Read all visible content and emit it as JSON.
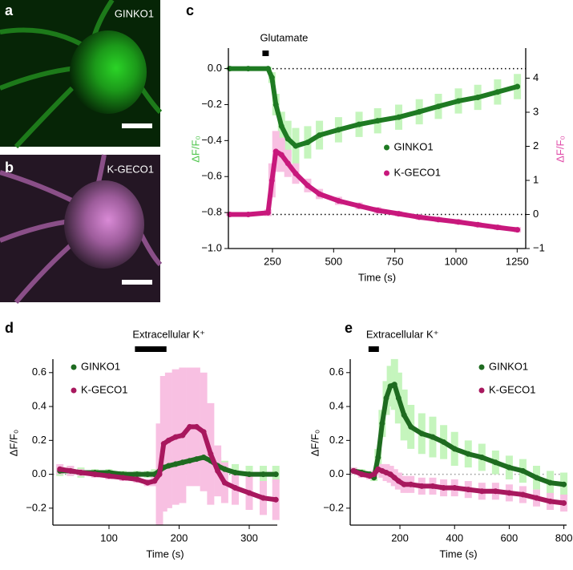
{
  "panels": [
    {
      "letter": "a",
      "label": "GINKO1",
      "color": "#23c21f"
    },
    {
      "letter": "b",
      "label": "K-GECO1",
      "color": "#c77ac4"
    }
  ],
  "chart_data": [
    {
      "type": "line",
      "panel_label": "c",
      "stimulus_label": "Glutamate",
      "stimulus": [
        209,
        235
      ],
      "x": [
        76,
        151,
        232,
        248,
        264,
        287,
        313,
        345,
        394,
        442,
        520,
        604,
        680,
        766,
        850,
        928,
        1010,
        1089,
        1170,
        1251
      ],
      "series": [
        {
          "name": "GINKO1",
          "color": "#1e7a22",
          "error_color": "#c5f5bd",
          "axis": "y",
          "values": [
            0.0,
            0.0,
            0.0,
            -0.05,
            -0.2,
            -0.32,
            -0.39,
            -0.43,
            -0.41,
            -0.37,
            -0.34,
            -0.31,
            -0.29,
            -0.27,
            -0.24,
            -0.21,
            -0.18,
            -0.16,
            -0.13,
            -0.1
          ],
          "errors": [
            0.01,
            0.01,
            0.01,
            0.03,
            0.06,
            0.08,
            0.1,
            0.1,
            0.09,
            0.08,
            0.07,
            0.07,
            0.07,
            0.07,
            0.07,
            0.07,
            0.07,
            0.07,
            0.07,
            0.07
          ]
        },
        {
          "name": "K-GECO1",
          "color": "#c8187c",
          "error_color": "#f8c0e2",
          "axis": "y2",
          "values": [
            0,
            0,
            0.05,
            1.0,
            1.85,
            1.75,
            1.5,
            1.2,
            0.85,
            0.6,
            0.4,
            0.25,
            0.12,
            0.02,
            -0.08,
            -0.15,
            -0.22,
            -0.3,
            -0.38,
            -0.45
          ],
          "errors": [
            0.05,
            0.05,
            0.1,
            0.5,
            0.6,
            0.5,
            0.4,
            0.3,
            0.2,
            0.15,
            0.12,
            0.1,
            0.1,
            0.08,
            0.08,
            0.08,
            0.08,
            0.08,
            0.08,
            0.08
          ]
        }
      ],
      "xlim": [
        70,
        1285
      ],
      "xticks": [
        250,
        500,
        750,
        1000,
        1250
      ],
      "ylim": [
        -1.0,
        0.105
      ],
      "yticks": [
        {
          "value": -1.0,
          "label": "−1.0"
        },
        {
          "value": -0.8,
          "label": "−0.8"
        },
        {
          "value": -0.6,
          "label": "−0.6"
        },
        {
          "value": -0.4,
          "label": "−0.4"
        },
        {
          "value": -0.2,
          "label": "−0.2"
        },
        {
          "value": 0,
          "label": "0.0"
        }
      ],
      "y2lim": [
        -1,
        4.835
      ],
      "y2ticks": [
        {
          "value": -1,
          "label": "−1"
        },
        0,
        1,
        2,
        3,
        4
      ],
      "reference": [
        {
          "axis": "y",
          "value": 0
        },
        {
          "axis": "y2",
          "value": 0
        }
      ],
      "xlabel": "Time (s)",
      "ylabel": "ΔF/F₀",
      "ylabel_color": "#4cc44a",
      "y2label": "ΔF/F₀",
      "y2label_color": "#e04aa8",
      "legend": "center"
    },
    {
      "type": "line",
      "panel_label": "d",
      "stimulus_label": "Extracellular K⁺",
      "stimulus": [
        137,
        182
      ],
      "x": [
        30,
        45,
        60,
        80,
        100,
        120,
        140,
        155,
        165,
        172,
        178,
        185,
        195,
        205,
        215,
        225,
        235,
        245,
        255,
        265,
        280,
        300,
        320,
        338
      ],
      "series": [
        {
          "name": "GINKO1",
          "color": "#1e6b20",
          "error_color": "#c5f5bd",
          "axis": "y",
          "values": [
            0.02,
            0.02,
            0.01,
            0.01,
            0.01,
            0.0,
            0.0,
            0.0,
            0.0,
            0.02,
            0.04,
            0.05,
            0.06,
            0.07,
            0.08,
            0.09,
            0.1,
            0.08,
            0.05,
            0.03,
            0.01,
            0.0,
            0.0,
            0.0
          ],
          "errors": [
            0.03,
            0.03,
            0.03,
            0.02,
            0.02,
            0.02,
            0.02,
            0.02,
            0.03,
            0.04,
            0.05,
            0.05,
            0.05,
            0.05,
            0.06,
            0.06,
            0.06,
            0.06,
            0.05,
            0.05,
            0.05,
            0.05,
            0.05,
            0.05
          ]
        },
        {
          "name": "K-GECO1",
          "color": "#a8185e",
          "error_color": "#f8c0e2",
          "axis": "y",
          "values": [
            0.03,
            0.02,
            0.01,
            0.0,
            -0.01,
            -0.02,
            -0.03,
            -0.05,
            -0.04,
            0.0,
            0.18,
            0.2,
            0.22,
            0.23,
            0.28,
            0.28,
            0.25,
            0.12,
            0.02,
            -0.05,
            -0.08,
            -0.11,
            -0.14,
            -0.15
          ],
          "errors": [
            0.03,
            0.03,
            0.02,
            0.02,
            0.02,
            0.02,
            0.02,
            0.02,
            0.03,
            0.3,
            0.4,
            0.4,
            0.4,
            0.4,
            0.35,
            0.35,
            0.35,
            0.3,
            0.15,
            0.12,
            0.1,
            0.1,
            0.1,
            0.12
          ]
        }
      ],
      "xlim": [
        20,
        340
      ],
      "xticks": [
        100,
        200,
        300
      ],
      "ylim": [
        -0.3,
        0.67
      ],
      "yticks": [
        {
          "value": -0.2,
          "label": "−0.2"
        },
        {
          "value": 0,
          "label": "0.0"
        },
        0.2,
        0.4,
        0.6
      ],
      "reference": [
        {
          "axis": "y",
          "value": 0
        }
      ],
      "xlabel": "Time (s)",
      "ylabel": "ΔF/F₀",
      "ylabel_color": "#000000",
      "legend": "upper left"
    },
    {
      "type": "line",
      "panel_label": "e",
      "stimulus_label": "Extracellular K⁺",
      "stimulus": [
        85,
        123
      ],
      "x": [
        30,
        60,
        90,
        105,
        120,
        135,
        150,
        165,
        180,
        195,
        215,
        240,
        280,
        320,
        360,
        400,
        450,
        500,
        550,
        600,
        650,
        700,
        750,
        800
      ],
      "series": [
        {
          "name": "GINKO1",
          "color": "#1e6b20",
          "error_color": "#c5f5bd",
          "axis": "y",
          "values": [
            0.02,
            0.01,
            0.0,
            -0.02,
            0.1,
            0.3,
            0.45,
            0.52,
            0.53,
            0.45,
            0.35,
            0.28,
            0.24,
            0.22,
            0.19,
            0.15,
            0.12,
            0.1,
            0.07,
            0.04,
            0.02,
            -0.02,
            -0.05,
            -0.06
          ],
          "errors": [
            0.02,
            0.02,
            0.02,
            0.02,
            0.05,
            0.08,
            0.1,
            0.12,
            0.15,
            0.15,
            0.15,
            0.13,
            0.12,
            0.12,
            0.1,
            0.1,
            0.08,
            0.08,
            0.07,
            0.07,
            0.07,
            0.07,
            0.07,
            0.07
          ]
        },
        {
          "name": "K-GECO1",
          "color": "#a8185e",
          "error_color": "#f8c0e2",
          "axis": "y",
          "values": [
            0.02,
            0.0,
            -0.01,
            0.0,
            0.03,
            0.02,
            0.01,
            0.0,
            -0.02,
            -0.04,
            -0.06,
            -0.06,
            -0.07,
            -0.07,
            -0.08,
            -0.08,
            -0.09,
            -0.1,
            -0.1,
            -0.11,
            -0.12,
            -0.14,
            -0.16,
            -0.17
          ],
          "errors": [
            0.02,
            0.02,
            0.02,
            0.02,
            0.03,
            0.04,
            0.05,
            0.05,
            0.05,
            0.05,
            0.05,
            0.05,
            0.05,
            0.05,
            0.05,
            0.05,
            0.05,
            0.05,
            0.05,
            0.05,
            0.05,
            0.05,
            0.05,
            0.05
          ]
        }
      ],
      "xlim": [
        18,
        810
      ],
      "xticks": [
        200,
        400,
        600,
        800
      ],
      "ylim": [
        -0.3,
        0.67
      ],
      "yticks": [
        {
          "value": -0.2,
          "label": "−0.2"
        },
        {
          "value": 0,
          "label": "0.0"
        },
        0.2,
        0.4,
        0.6
      ],
      "reference": [
        {
          "axis": "y",
          "value": 0
        }
      ],
      "xlabel": "Time (s)",
      "ylabel": "ΔF/F₀",
      "ylabel_color": "#000000",
      "legend": "upper right"
    }
  ]
}
